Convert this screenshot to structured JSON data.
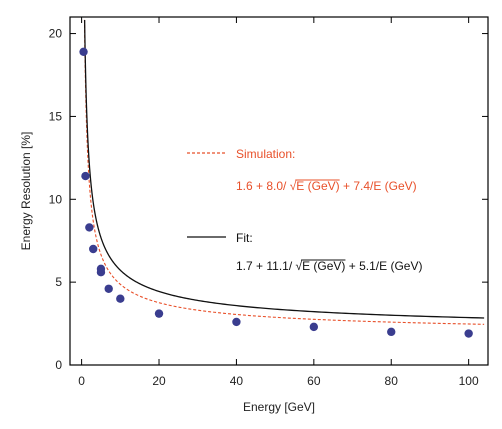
{
  "chart_data": {
    "type": "scatter",
    "xlabel": "Energy [GeV]",
    "ylabel": "Energy Resolution [%]",
    "xlim": [
      -3,
      105
    ],
    "ylim": [
      0,
      21
    ],
    "xticks": [
      0,
      20,
      40,
      60,
      80,
      100
    ],
    "yticks": [
      0,
      5,
      10,
      15,
      20
    ],
    "grid": false,
    "legend_placement": "right-middle",
    "series": [
      {
        "kind": "points",
        "marker": "circle",
        "color": "#3a3d8f",
        "x": [
          0.5,
          1,
          2,
          3,
          5,
          5,
          7,
          10,
          20,
          40,
          60,
          80,
          100
        ],
        "y": [
          18.9,
          11.4,
          8.3,
          7.0,
          5.8,
          5.6,
          4.6,
          4.0,
          3.1,
          2.6,
          2.3,
          2.0,
          1.9
        ]
      },
      {
        "kind": "curve",
        "style": "dashed",
        "color": "#e8502a",
        "name": "Simulation:",
        "formula_label_prefix": "1.6 + 8.0/ √",
        "formula_label_radicand": "E (GeV)",
        "formula_label_suffix": " + 7.4/E (GeV)",
        "a": 1.6,
        "b": 8.0,
        "c": 7.4
      },
      {
        "kind": "curve",
        "style": "solid",
        "color": "#111111",
        "name": "Fit:",
        "formula_label_prefix": "1.7 + 11.1/ √",
        "formula_label_radicand": "E (GeV)",
        "formula_label_suffix": " + 5.1/E (GeV)",
        "a": 1.7,
        "b": 11.1,
        "c": 5.1
      }
    ]
  }
}
